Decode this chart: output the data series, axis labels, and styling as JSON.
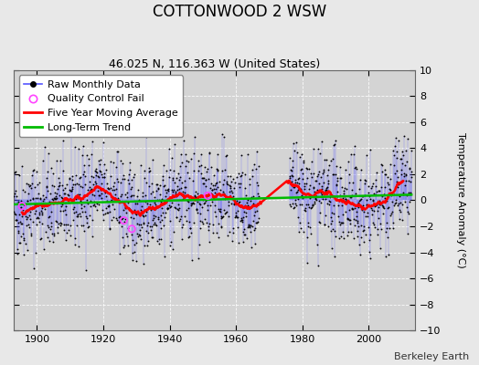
{
  "title": "COTTONWOOD 2 WSW",
  "subtitle": "46.025 N, 116.363 W (United States)",
  "ylabel": "Temperature Anomaly (°C)",
  "credit": "Berkeley Earth",
  "ylim": [
    -10,
    10
  ],
  "xlim": [
    1893,
    2014
  ],
  "yticks": [
    -10,
    -8,
    -6,
    -4,
    -2,
    0,
    2,
    4,
    6,
    8,
    10
  ],
  "xticks": [
    1900,
    1920,
    1940,
    1960,
    1980,
    2000
  ],
  "start_year": 1893,
  "end_year": 2013,
  "bg_color": "#e8e8e8",
  "plot_bg_color": "#d4d4d4",
  "raw_line_color": "#5555ff",
  "raw_dot_color": "#000000",
  "moving_avg_color": "#ff0000",
  "trend_color": "#00bb00",
  "qc_fail_color": "#ff44ff",
  "title_fontsize": 12,
  "subtitle_fontsize": 9,
  "label_fontsize": 8,
  "legend_fontsize": 8,
  "credit_fontsize": 8,
  "seed": 42,
  "qc_fail_points": [
    [
      1895.5,
      -0.45
    ],
    [
      1926.2,
      -1.55
    ],
    [
      1928.6,
      -2.2
    ],
    [
      1951.5,
      0.35
    ]
  ],
  "gap_start": 1967.0,
  "gap_end": 1976.0
}
